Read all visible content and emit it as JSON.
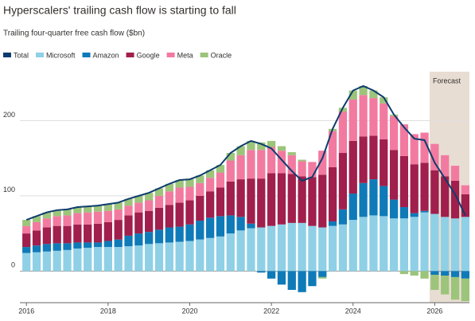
{
  "chart_data": {
    "type": "stacked-bar-line",
    "title": "Hyperscalers' trailing cash flow is starting to fall",
    "subtitle": "Trailing four-quarter free cash flow ($bn)",
    "annotation": "Forecast",
    "forecast_start": 2025.875,
    "x": [
      2016,
      2016.25,
      2016.5,
      2016.75,
      2017,
      2017.25,
      2017.5,
      2017.75,
      2018,
      2018.25,
      2018.5,
      2018.75,
      2019,
      2019.25,
      2019.5,
      2019.75,
      2020,
      2020.25,
      2020.5,
      2020.75,
      2021,
      2021.25,
      2021.5,
      2021.75,
      2022,
      2022.25,
      2022.5,
      2022.75,
      2023,
      2023.25,
      2023.5,
      2023.75,
      2024,
      2024.25,
      2024.5,
      2024.75,
      2025,
      2025.25,
      2025.5,
      2025.75,
      2026,
      2026.25,
      2026.5,
      2026.75
    ],
    "xlim": [
      2015.84,
      2026.85
    ],
    "xticks": [
      2016,
      2018,
      2020,
      2022,
      2024,
      2026
    ],
    "ylim": [
      -42,
      265
    ],
    "yticks": [
      0,
      100,
      200
    ],
    "grid": true,
    "series": [
      {
        "name": "Total",
        "color": "#0d3c6e",
        "kind": "line",
        "values": [
          68,
          73,
          78,
          81,
          82,
          85,
          86,
          87,
          89,
          91,
          96,
          100,
          104,
          110,
          116,
          121,
          122,
          127,
          134,
          141,
          157,
          166,
          173,
          169,
          163,
          148,
          133,
          120,
          125,
          150,
          189,
          217,
          240,
          246,
          240,
          231,
          208,
          191,
          176,
          174,
          144,
          123,
          102,
          74
        ]
      },
      {
        "name": "Microsoft",
        "color": "#8fd0e6",
        "kind": "bar",
        "values": [
          24,
          25,
          26,
          27,
          28,
          30,
          31,
          32,
          32,
          32,
          33,
          34,
          36,
          37,
          38,
          39,
          40,
          42,
          44,
          46,
          50,
          54,
          57,
          58,
          60,
          62,
          64,
          64,
          60,
          58,
          60,
          62,
          68,
          72,
          74,
          73,
          70,
          70,
          72,
          78,
          76,
          72,
          70,
          72
        ]
      },
      {
        "name": "Amazon",
        "color": "#0f7ab8",
        "kind": "bar",
        "values": [
          8,
          9,
          10,
          10,
          9,
          8,
          7,
          6,
          8,
          10,
          14,
          16,
          16,
          18,
          20,
          20,
          22,
          25,
          27,
          27,
          24,
          18,
          6,
          -2,
          -10,
          -18,
          -25,
          -28,
          -20,
          -8,
          6,
          20,
          35,
          45,
          48,
          40,
          25,
          15,
          5,
          2,
          -5,
          -6,
          -8,
          -10
        ]
      },
      {
        "name": "Google",
        "color": "#a01f4c",
        "kind": "bar",
        "values": [
          18,
          20,
          22,
          23,
          23,
          24,
          24,
          25,
          25,
          26,
          27,
          28,
          28,
          29,
          30,
          32,
          32,
          33,
          35,
          38,
          45,
          50,
          60,
          65,
          70,
          68,
          65,
          62,
          65,
          70,
          72,
          75,
          70,
          62,
          58,
          62,
          66,
          68,
          65,
          64,
          58,
          54,
          50,
          30
        ]
      },
      {
        "name": "Meta",
        "color": "#f27aa0",
        "kind": "bar",
        "values": [
          10,
          11,
          12,
          13,
          14,
          15,
          16,
          16,
          15,
          14,
          13,
          13,
          14,
          16,
          18,
          20,
          18,
          17,
          18,
          20,
          28,
          32,
          38,
          38,
          35,
          30,
          25,
          20,
          20,
          32,
          48,
          55,
          55,
          55,
          50,
          48,
          45,
          42,
          40,
          40,
          35,
          28,
          20,
          12
        ]
      },
      {
        "name": "Oracle",
        "color": "#9cc47a",
        "kind": "bar",
        "values": [
          8,
          8,
          8,
          8,
          8,
          8,
          8,
          8,
          9,
          9,
          9,
          9,
          10,
          10,
          10,
          10,
          10,
          10,
          10,
          10,
          10,
          12,
          12,
          10,
          8,
          6,
          4,
          2,
          0,
          -2,
          3,
          5,
          12,
          12,
          10,
          8,
          2,
          -4,
          -6,
          -10,
          -20,
          -25,
          -30,
          -30
        ]
      }
    ]
  }
}
